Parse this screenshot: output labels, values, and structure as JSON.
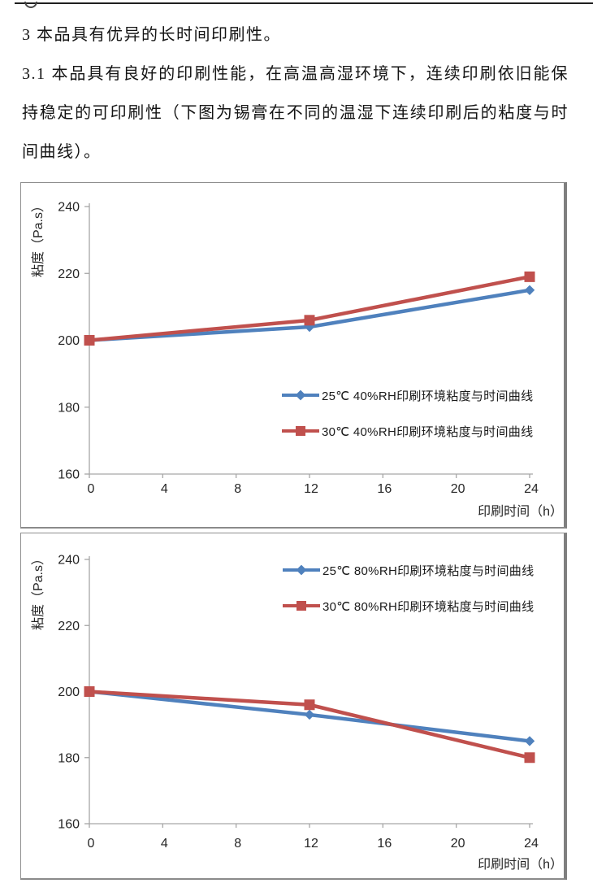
{
  "page": {
    "paragraph1": "3 本品具有优异的长时间印刷性。",
    "paragraph2": "3.1 本品具有良好的印刷性能，在高温高湿环境下，连续印刷依旧能保持稳定的可印刷性（下图为锡膏在不同的温湿下连续印刷后的粘度与时间曲线）。"
  },
  "colors": {
    "series_blue": "#4F81BD",
    "series_red": "#C0504D",
    "axis_gray": "#A6A6A6",
    "chart_border": "#808080",
    "text_black": "#1a1a1a"
  },
  "chart_data": [
    {
      "type": "line",
      "title": "",
      "xlabel": "印刷时间（h）",
      "ylabel": "粘度（Pa.s）",
      "x": [
        0,
        12,
        24
      ],
      "x_ticks": [
        0,
        4,
        8,
        12,
        16,
        20,
        24
      ],
      "y_ticks": [
        240,
        220,
        200,
        180,
        160
      ],
      "xlim": [
        0,
        24
      ],
      "ylim": [
        160,
        240
      ],
      "grid": false,
      "legend_position": "center-right",
      "series": [
        {
          "name": "25℃ 40%RH印刷环境粘度与时间曲线",
          "color": "#4F81BD",
          "marker": "diamond",
          "values": [
            200,
            204,
            215
          ]
        },
        {
          "name": "30℃ 40%RH印刷环境粘度与时间曲线",
          "color": "#C0504D",
          "marker": "square",
          "values": [
            200,
            206,
            219
          ]
        }
      ]
    },
    {
      "type": "line",
      "title": "",
      "xlabel": "印刷时间（h）",
      "ylabel": "粘度（Pa.s）",
      "x": [
        0,
        12,
        24
      ],
      "x_ticks": [
        0,
        4,
        8,
        12,
        16,
        20,
        24
      ],
      "y_ticks": [
        240,
        220,
        200,
        180,
        160
      ],
      "xlim": [
        0,
        24
      ],
      "ylim": [
        160,
        240
      ],
      "grid": false,
      "legend_position": "top-right",
      "series": [
        {
          "name": "25℃ 80%RH印刷环境粘度与时间曲线",
          "color": "#4F81BD",
          "marker": "diamond",
          "values": [
            200,
            193,
            185
          ]
        },
        {
          "name": "30℃ 80%RH印刷环境粘度与时间曲线",
          "color": "#C0504D",
          "marker": "square",
          "values": [
            200,
            196,
            180
          ]
        }
      ]
    }
  ]
}
